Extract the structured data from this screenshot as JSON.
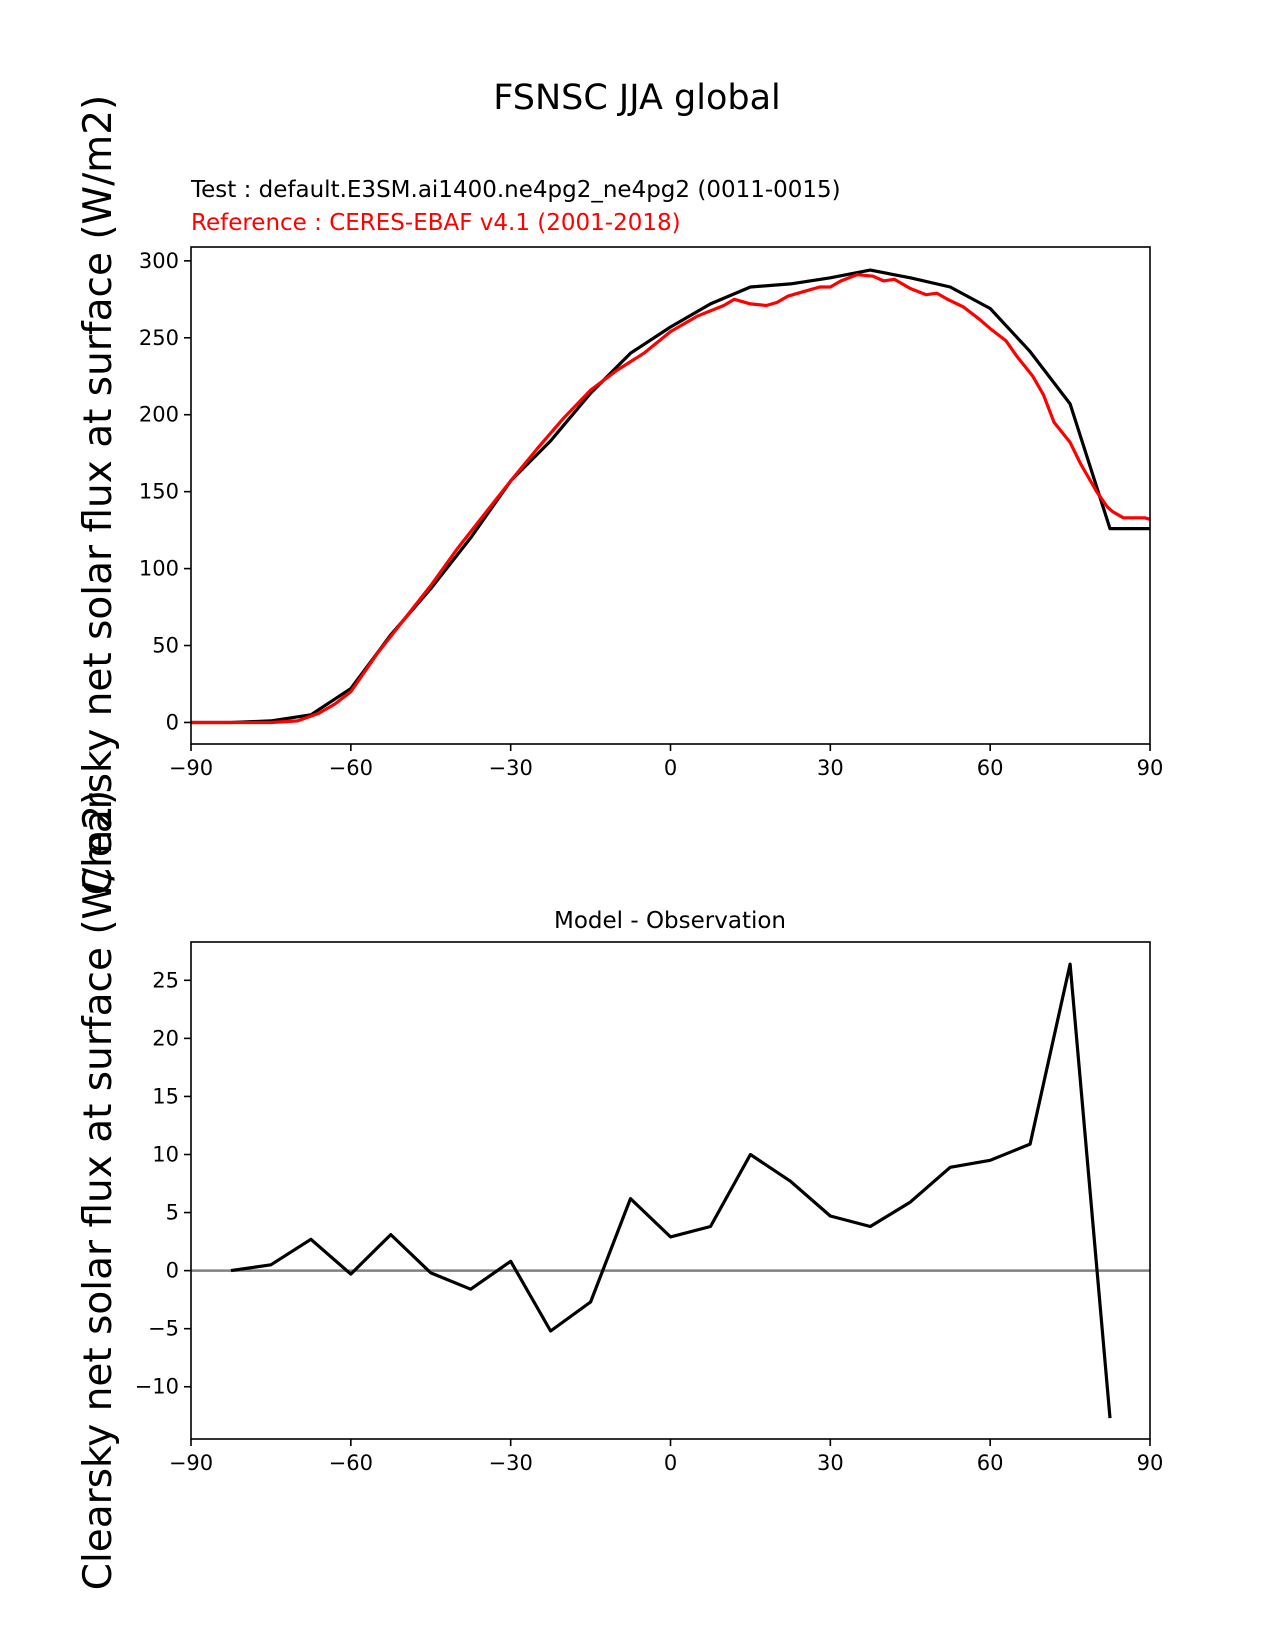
{
  "figure": {
    "title": "FSNSC JJA global",
    "test_label": "Test : default.E3SM.ai1400.ne4pg2_ne4pg2 (0011-0015)",
    "reference_label": "Reference : CERES-EBAF v4.1 (2001-2018)",
    "diff_title": "Model - Observation",
    "ylabel_top": "Clearsky net solar flux at surface (W/m2)",
    "ylabel_bottom": "Clearsky net solar flux at surface (W/m2)"
  },
  "colors": {
    "test": "#000000",
    "reference": "#ff0000",
    "zero_line": "#808080"
  },
  "chart_data": [
    {
      "type": "line",
      "title": "",
      "xlabel": "",
      "ylabel": "Clearsky net solar flux at surface (W/m2)",
      "xlim": [
        -90,
        90
      ],
      "ylim": [
        -14,
        309
      ],
      "xticks": [
        -90,
        -60,
        -30,
        0,
        30,
        60,
        90
      ],
      "yticks": [
        0,
        50,
        100,
        150,
        200,
        250,
        300
      ],
      "grid": false,
      "series": [
        {
          "name": "Test : default.E3SM.ai1400.ne4pg2_ne4pg2 (0011-0015)",
          "color": "#000000",
          "x": [
            -90,
            -82.5,
            -75,
            -67.5,
            -60,
            -52.5,
            -45,
            -37.5,
            -30,
            -22.5,
            -15,
            -7.5,
            0,
            7.5,
            15,
            22.5,
            30,
            37.5,
            45,
            52.5,
            60,
            67.5,
            75,
            82.5,
            90
          ],
          "y": [
            0,
            0,
            1,
            5,
            22,
            57,
            87,
            120,
            157,
            183,
            214,
            240,
            257,
            272,
            283,
            285,
            289,
            294,
            289,
            283,
            269,
            241,
            207,
            126,
            126
          ]
        },
        {
          "name": "Reference : CERES-EBAF v4.1 (2001-2018)",
          "color": "#ff0000",
          "x": [
            -90,
            -80,
            -75,
            -70,
            -66,
            -63,
            -60,
            -55,
            -50,
            -45,
            -40,
            -35,
            -30,
            -25,
            -20,
            -15,
            -10,
            -5,
            0,
            5,
            10,
            12,
            15,
            18,
            20,
            22,
            25,
            28,
            30,
            32,
            35,
            38,
            40,
            42,
            45,
            48,
            50,
            52,
            55,
            58,
            60,
            63,
            65,
            68,
            70,
            72,
            75,
            77,
            80,
            82,
            83,
            85,
            87,
            89,
            90
          ],
          "y": [
            0,
            0,
            0,
            1,
            6,
            12,
            20,
            45,
            67,
            89,
            113,
            135,
            157,
            178,
            198,
            216,
            229,
            240,
            254,
            264,
            271,
            275,
            272,
            271,
            273,
            277,
            280,
            283,
            283,
            287,
            291,
            290,
            287,
            288,
            282,
            278,
            279,
            275,
            270,
            262,
            256,
            248,
            238,
            225,
            213,
            195,
            182,
            168,
            150,
            140,
            137,
            133,
            133,
            133,
            132
          ]
        }
      ]
    },
    {
      "type": "line",
      "title": "Model - Observation",
      "xlabel": "",
      "ylabel": "Clearsky net solar flux at surface (W/m2)",
      "xlim": [
        -90,
        90
      ],
      "ylim": [
        -14.5,
        28.3
      ],
      "xticks": [
        -90,
        -60,
        -30,
        0,
        30,
        60,
        90
      ],
      "yticks": [
        -10,
        -5,
        0,
        5,
        10,
        15,
        20,
        25
      ],
      "grid": false,
      "zero_line": true,
      "series": [
        {
          "name": "",
          "color": "#000000",
          "x": [
            -82.5,
            -75,
            -67.5,
            -60,
            -52.5,
            -45,
            -37.5,
            -30,
            -22.5,
            -15,
            -7.5,
            0,
            7.5,
            15,
            22.5,
            30,
            37.5,
            45,
            52.5,
            60,
            67.5,
            75,
            82.5
          ],
          "y": [
            0,
            0.5,
            2.7,
            -0.3,
            3.1,
            -0.2,
            -1.6,
            0.8,
            -5.2,
            -2.7,
            6.2,
            2.9,
            3.8,
            10.0,
            7.7,
            4.7,
            3.8,
            5.9,
            8.9,
            9.5,
            10.9,
            26.4,
            -12.7
          ]
        }
      ]
    }
  ]
}
